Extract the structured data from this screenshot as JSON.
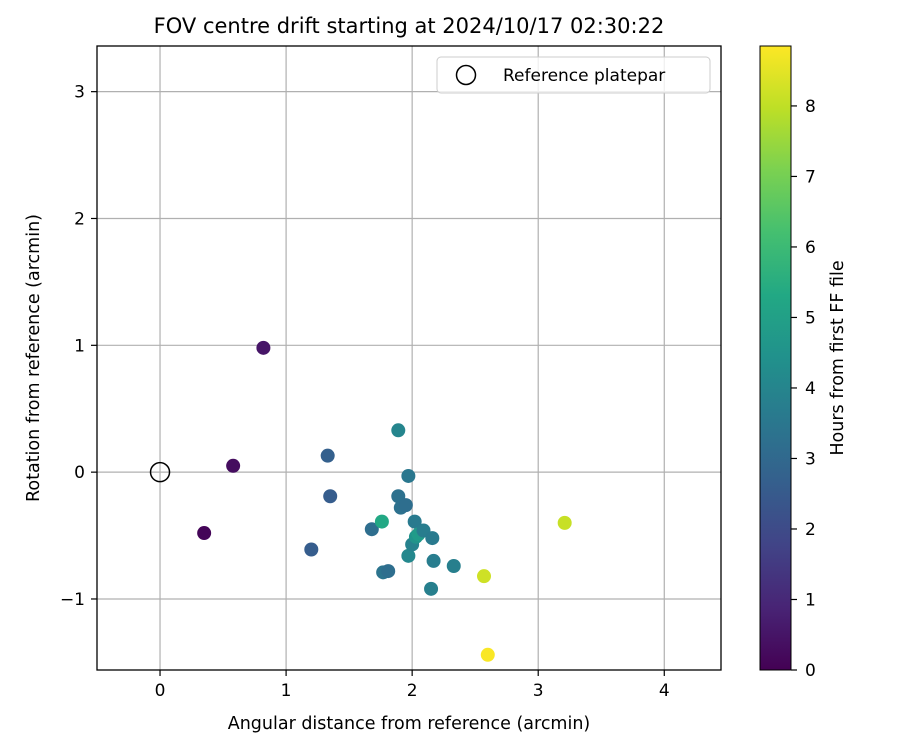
{
  "chart_data": {
    "type": "scatter",
    "title": "FOV centre drift starting at 2024/10/17 02:30:22",
    "xlabel": "Angular distance from reference (arcmin)",
    "ylabel": "Rotation from reference (arcmin)",
    "xlim": [
      -0.5,
      4.45
    ],
    "ylim": [
      -1.56,
      3.36
    ],
    "xticks": [
      0,
      1,
      2,
      3,
      4
    ],
    "yticks": [
      -1,
      0,
      1,
      2,
      3
    ],
    "grid": true,
    "legend": {
      "position": "top-right",
      "entries": [
        "Reference platepar"
      ]
    },
    "reference_point": {
      "x": 0,
      "y": 0
    },
    "colorbar": {
      "label": "Hours from first FF file",
      "colormap": "viridis",
      "min": 0,
      "max": 8.85,
      "ticks": [
        0,
        1,
        2,
        3,
        4,
        5,
        6,
        7,
        8
      ]
    },
    "points": [
      {
        "x": 0.35,
        "y": -0.48,
        "hours": 0.1
      },
      {
        "x": 0.58,
        "y": 0.05,
        "hours": 0.3
      },
      {
        "x": 0.82,
        "y": 0.98,
        "hours": 0.5
      },
      {
        "x": 1.2,
        "y": -0.61,
        "hours": 2.6
      },
      {
        "x": 1.33,
        "y": 0.13,
        "hours": 2.7
      },
      {
        "x": 1.35,
        "y": -0.19,
        "hours": 2.6
      },
      {
        "x": 1.68,
        "y": -0.45,
        "hours": 3.2
      },
      {
        "x": 1.76,
        "y": -0.39,
        "hours": 5.3
      },
      {
        "x": 1.77,
        "y": -0.79,
        "hours": 3.4
      },
      {
        "x": 1.81,
        "y": -0.78,
        "hours": 3.2
      },
      {
        "x": 1.89,
        "y": 0.33,
        "hours": 4.0
      },
      {
        "x": 1.89,
        "y": -0.19,
        "hours": 3.3
      },
      {
        "x": 1.91,
        "y": -0.28,
        "hours": 3.3
      },
      {
        "x": 1.95,
        "y": -0.26,
        "hours": 3.2
      },
      {
        "x": 1.97,
        "y": -0.03,
        "hours": 3.5
      },
      {
        "x": 1.97,
        "y": -0.66,
        "hours": 4.1
      },
      {
        "x": 2.0,
        "y": -0.57,
        "hours": 3.9
      },
      {
        "x": 2.02,
        "y": -0.39,
        "hours": 3.6
      },
      {
        "x": 2.03,
        "y": -0.51,
        "hours": 4.5
      },
      {
        "x": 2.05,
        "y": -0.49,
        "hours": 4.8
      },
      {
        "x": 2.09,
        "y": -0.46,
        "hours": 3.7
      },
      {
        "x": 2.16,
        "y": -0.52,
        "hours": 3.6
      },
      {
        "x": 2.15,
        "y": -0.92,
        "hours": 3.8
      },
      {
        "x": 2.17,
        "y": -0.7,
        "hours": 3.7
      },
      {
        "x": 2.33,
        "y": -0.74,
        "hours": 3.8
      },
      {
        "x": 2.57,
        "y": -0.82,
        "hours": 8.2
      },
      {
        "x": 2.6,
        "y": -1.44,
        "hours": 8.8
      },
      {
        "x": 3.21,
        "y": -0.4,
        "hours": 8.1
      }
    ]
  }
}
